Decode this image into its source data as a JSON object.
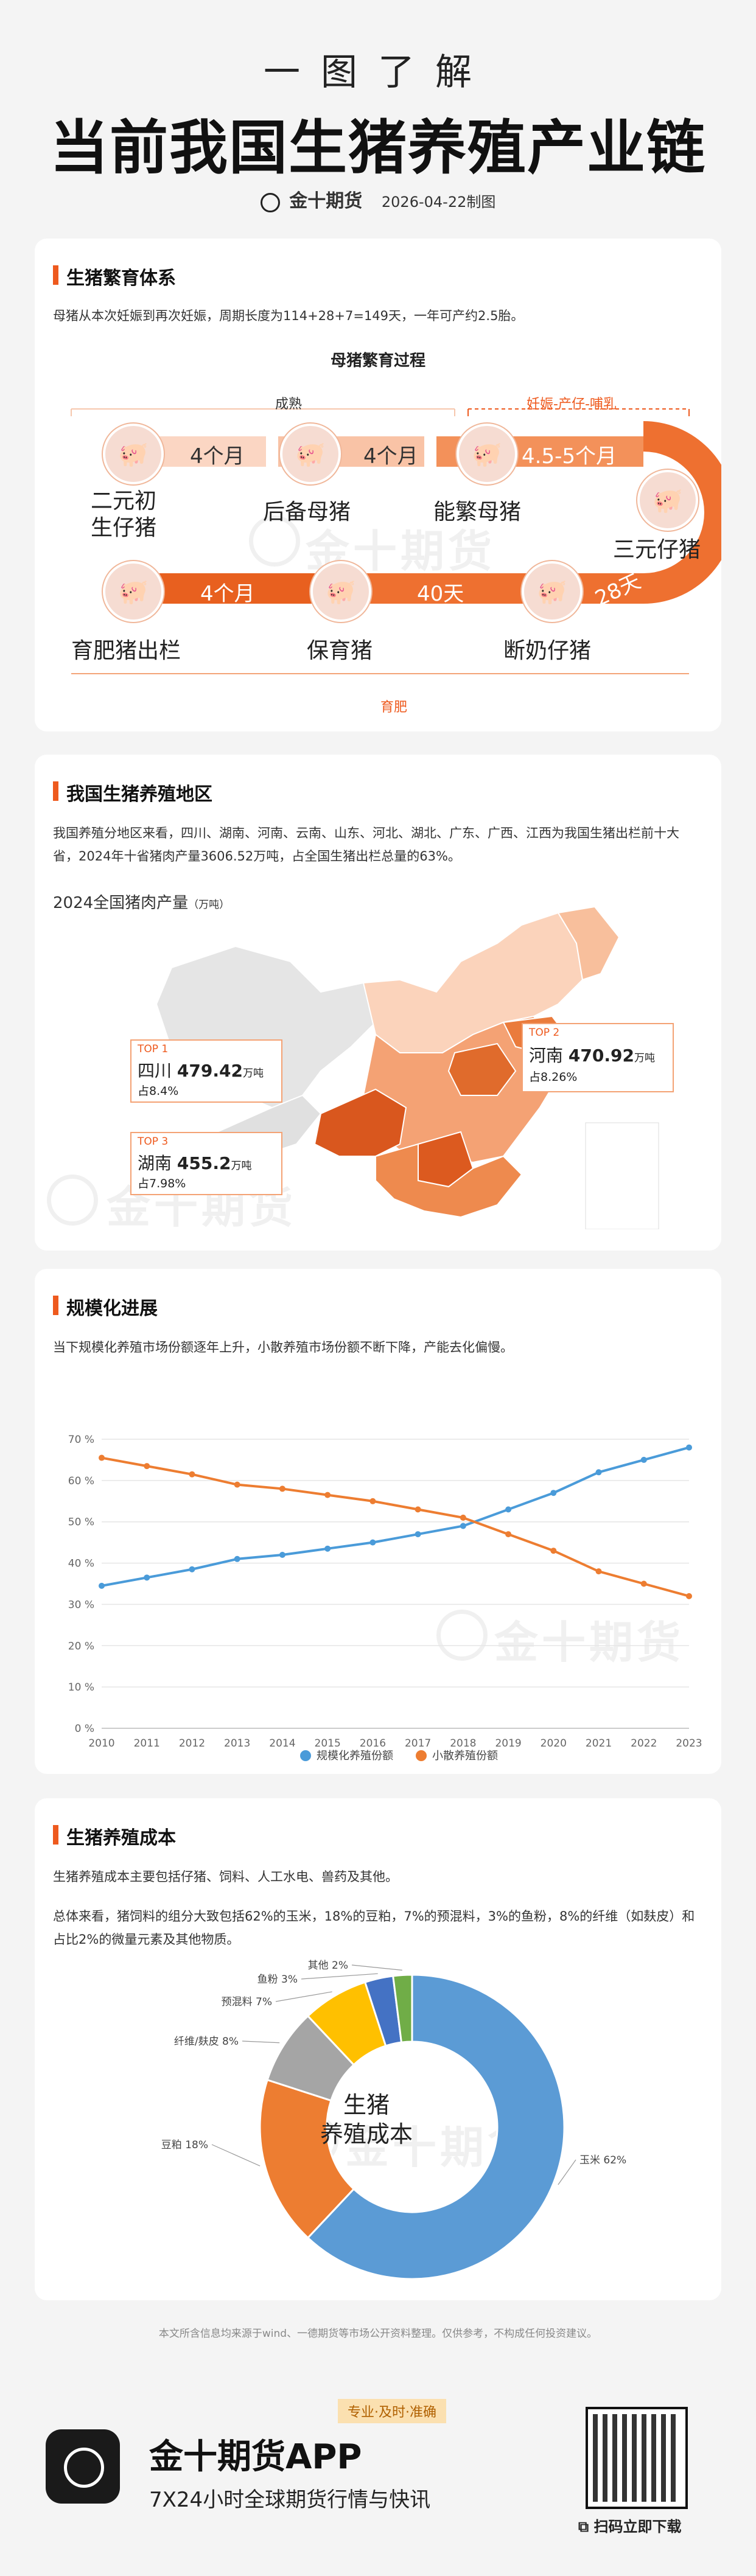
{
  "header": {
    "subtitle": "一图了解",
    "title": "当前我国生猪养殖产业链",
    "brand": "金十期货",
    "date": "2026-04-22制图"
  },
  "breeding": {
    "title": "生猪繁育体系",
    "desc": "母猪从本次妊娠到再次妊娠，周期长度为114+28+7=149天，一年可产约2.5胎。",
    "diagram_title": "母猪繁育过程",
    "label_mature": "成熟",
    "label_pregnancy": "妊娠-产仔-哺乳",
    "label_fatten": "育肥",
    "stages": [
      "二元初\n生仔猪",
      "后备母猪",
      "能繁母猪",
      "三元仔猪",
      "断奶仔猪",
      "保育猪",
      "育肥猪出栏"
    ],
    "durations": [
      "4个月",
      "4个月",
      "4.5-5个月",
      "28天",
      "40天",
      "4个月"
    ]
  },
  "region": {
    "title": "我国生猪养殖地区",
    "desc": "我国养殖分地区来看，四川、湖南、河南、云南、山东、河北、湖北、广东、广西、江西为我国生猪出栏前十大省，2024年十省猪肉产量3606.52万吨，占全国生猪出栏总量的63%。",
    "map_title": "2024全国猪肉产量",
    "map_unit": "（万吨）",
    "top": [
      {
        "rank": "TOP 1",
        "name": "四川",
        "value": "479.42",
        "unit": "万吨",
        "share": "占8.4%"
      },
      {
        "rank": "TOP 2",
        "name": "河南",
        "value": "470.92",
        "unit": "万吨",
        "share": "占8.26%"
      },
      {
        "rank": "TOP 3",
        "name": "湖南",
        "value": "455.2",
        "unit": "万吨",
        "share": "占7.98%"
      }
    ]
  },
  "scale": {
    "title": "规模化进展",
    "desc": "当下规模化养殖市场份额逐年上升，小散养殖市场份额不断下降，产能去化偏慢。"
  },
  "cost": {
    "title": "生猪养殖成本",
    "desc1": "生猪养殖成本主要包括仔猪、饲料、人工水电、兽药及其他。",
    "desc2": "总体来看，猪饲料的组分大致包括62%的玉米，18%的豆粕，7%的预混料，3%的鱼粉，8%的纤维（如麸皮）和占比2%的微量元素及其他物质。",
    "center_label": "生猪\n养殖成本"
  },
  "chart_data": [
    {
      "type": "line",
      "title": "",
      "x": [
        2010,
        2011,
        2012,
        2013,
        2014,
        2015,
        2016,
        2017,
        2018,
        2019,
        2020,
        2021,
        2022,
        2023
      ],
      "ylim": [
        0,
        70
      ],
      "yticks": [
        "0 %",
        "10 %",
        "20 %",
        "30 %",
        "40 %",
        "50 %",
        "60 %",
        "70 %"
      ],
      "grid": true,
      "legend": "bottom",
      "series": [
        {
          "name": "规模化养殖份额",
          "color": "#4a9bd9",
          "values": [
            34.5,
            36.5,
            38.5,
            41,
            42,
            43.5,
            45,
            47,
            49,
            53,
            57,
            62,
            65,
            68
          ]
        },
        {
          "name": "小散养殖份额",
          "color": "#ed7d31",
          "values": [
            65.5,
            63.5,
            61.5,
            59,
            58,
            56.5,
            55,
            53,
            51,
            47,
            43,
            38,
            35,
            32
          ]
        }
      ]
    },
    {
      "type": "pie",
      "title": "",
      "categories": [
        "玉米",
        "豆粕",
        "纤维/麸皮",
        "预混料",
        "鱼粉",
        "其他"
      ],
      "values": [
        62,
        18,
        8,
        7,
        3,
        2
      ],
      "labels": [
        "玉米 62%",
        "豆粕 18%",
        "纤维/麸皮 8%",
        "预混料 7%",
        "鱼粉 3%",
        "其他 2%"
      ],
      "colors": [
        "#5b9bd5",
        "#ed7d31",
        "#a5a5a5",
        "#ffc000",
        "#4472c4",
        "#70ad47"
      ]
    }
  ],
  "footer": {
    "disclaimer": "本文所含信息均来源于wind、一德期货等市场公开资料整理。仅供参考，不构成任何投资建议。",
    "tag": "专业·及时·准确",
    "app_name": "金十期货APP",
    "app_slogan": "7X24小时全球期货行情与快讯",
    "qr_label": "扫码立即下载"
  }
}
